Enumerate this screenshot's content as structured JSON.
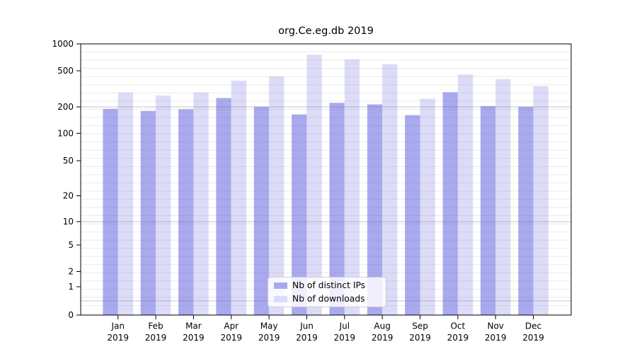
{
  "title": "org.Ce.eg.db 2019",
  "legend": {
    "items": [
      {
        "label": "Nb of distinct IPs",
        "color": "#a9a9ef"
      },
      {
        "label": "Nb of downloads",
        "color": "#dcdcf8"
      }
    ]
  },
  "chart_data": {
    "type": "bar",
    "title": "org.Ce.eg.db 2019",
    "categories": [
      "Jan 2019",
      "Feb 2019",
      "Mar 2019",
      "Apr 2019",
      "May 2019",
      "Jun 2019",
      "Jul 2019",
      "Aug 2019",
      "Sep 2019",
      "Oct 2019",
      "Nov 2019",
      "Dec 2019"
    ],
    "series": [
      {
        "name": "Nb of distinct IPs",
        "color": "#a9a9ef",
        "values": [
          190,
          180,
          188,
          251,
          201,
          164,
          222,
          213,
          161,
          290,
          204,
          201
        ]
      },
      {
        "name": "Nb of downloads",
        "color": "#dcdcf8",
        "values": [
          287,
          267,
          288,
          389,
          433,
          757,
          672,
          592,
          246,
          455,
          405,
          339
        ]
      }
    ],
    "yticks": [
      0,
      1,
      2,
      5,
      10,
      20,
      50,
      100,
      200,
      500,
      1000
    ],
    "ylim": [
      0,
      1000
    ],
    "yscale": "symlog",
    "xlabel": "",
    "ylabel": "",
    "grid": true,
    "legend_position": "lower center"
  }
}
